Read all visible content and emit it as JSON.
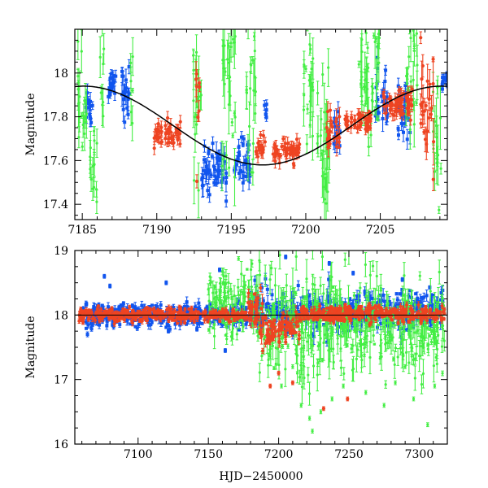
{
  "chart_data": [
    {
      "id": "top",
      "type": "scatter",
      "title": "",
      "xlabel": "",
      "ylabel": "Magnitude",
      "xlim": [
        7184.5,
        7209.5
      ],
      "ylim": [
        18.2,
        17.33
      ],
      "y_inverted": true,
      "xticks": [
        7185,
        7190,
        7195,
        7200,
        7205
      ],
      "xtick_labels": [
        "7185",
        "7190",
        "7195",
        "7200",
        "7205"
      ],
      "yticks": [
        17.4,
        17.6,
        17.8,
        18.0
      ],
      "ytick_labels": [
        "17.4",
        "17.6",
        "17.8",
        "18"
      ],
      "colors": {
        "red": "#ee4422",
        "blue": "#1155ee",
        "green": "#44ee44",
        "model": "#000000"
      },
      "model_curve": {
        "name": "sinusoid fit",
        "mean": 17.76,
        "amplitude": 0.18,
        "peak_x": 7197.1,
        "period_days": 24
      },
      "series": [
        {
          "name": "red",
          "segments": [
            {
              "x": [
                7189.8,
                7191.6
              ],
              "center": 17.72,
              "spread": 0.05
            },
            {
              "x": [
                7192.6,
                7192.9
              ],
              "center": 17.82,
              "spread": 0.25
            },
            {
              "x": [
                7196.6,
                7197.3
              ],
              "center": 17.65,
              "spread": 0.04
            },
            {
              "x": [
                7197.8,
                7199.6
              ],
              "center": 17.64,
              "spread": 0.05
            },
            {
              "x": [
                7201.4,
                7202.3
              ],
              "center": 17.73,
              "spread": 0.08
            },
            {
              "x": [
                7202.6,
                7204.4
              ],
              "center": 17.78,
              "spread": 0.04
            },
            {
              "x": [
                7205.2,
                7207.2
              ],
              "center": 17.86,
              "spread": 0.06
            },
            {
              "x": [
                7207.7,
                7208.6
              ],
              "center": 17.88,
              "spread": 0.22
            }
          ]
        },
        {
          "name": "blue",
          "segments": [
            {
              "x": [
                7185.2,
                7185.7
              ],
              "center": 17.85,
              "spread": 0.08
            },
            {
              "x": [
                7186.7,
                7187.3
              ],
              "center": 17.95,
              "spread": 0.06
            },
            {
              "x": [
                7187.6,
                7188.3
              ],
              "center": 17.92,
              "spread": 0.1
            },
            {
              "x": [
                7193.0,
                7194.7
              ],
              "center": 17.55,
              "spread": 0.1
            },
            {
              "x": [
                7195.2,
                7196.3
              ],
              "center": 17.6,
              "spread": 0.07
            },
            {
              "x": [
                7197.2,
                7197.4
              ],
              "center": 17.84,
              "spread": 0.04
            },
            {
              "x": [
                7201.8,
                7202.3
              ],
              "center": 17.72,
              "spread": 0.08
            },
            {
              "x": [
                7204.6,
                7205.5
              ],
              "center": 17.88,
              "spread": 0.12
            },
            {
              "x": [
                7206.2,
                7207.1
              ],
              "center": 17.82,
              "spread": 0.1
            },
            {
              "x": [
                7209.1,
                7209.5
              ],
              "center": 17.97,
              "spread": 0.03
            }
          ]
        },
        {
          "name": "green",
          "segments": [
            {
              "x": [
                7184.7,
                7185.3
              ],
              "center": 17.85,
              "spread": 0.25
            },
            {
              "x": [
                7185.5,
                7186.0
              ],
              "center": 17.6,
              "spread": 0.15
            },
            {
              "x": [
                7186.2,
                7186.5
              ],
              "center": 17.95,
              "spread": 0.22
            },
            {
              "x": [
                7188.2,
                7188.4
              ],
              "center": 17.9,
              "spread": 0.2
            },
            {
              "x": [
                7192.4,
                7193.0
              ],
              "center": 17.85,
              "spread": 0.3
            },
            {
              "x": [
                7194.3,
                7195.3
              ],
              "center": 17.9,
              "spread": 0.3
            },
            {
              "x": [
                7196.0,
                7196.7
              ],
              "center": 17.85,
              "spread": 0.3
            },
            {
              "x": [
                7199.8,
                7200.5
              ],
              "center": 17.95,
              "spread": 0.25
            },
            {
              "x": [
                7200.7,
                7201.6
              ],
              "center": 17.7,
              "spread": 0.3
            },
            {
              "x": [
                7203.5,
                7205.0
              ],
              "center": 17.95,
              "spread": 0.25
            },
            {
              "x": [
                7206.7,
                7207.5
              ],
              "center": 17.95,
              "spread": 0.25
            },
            {
              "x": [
                7208.5,
                7209.1
              ],
              "center": 17.7,
              "spread": 0.3
            }
          ]
        }
      ]
    },
    {
      "id": "bottom",
      "type": "scatter",
      "title": "",
      "xlabel": "HJD−2450000",
      "ylabel": "Magnitude",
      "xlim": [
        7055,
        7320
      ],
      "ylim": [
        19.0,
        16.0
      ],
      "y_inverted": true,
      "xticks": [
        7100,
        7150,
        7200,
        7250,
        7300
      ],
      "xtick_labels": [
        "7100",
        "7150",
        "7200",
        "7250",
        "7300"
      ],
      "yticks": [
        16,
        17,
        18,
        19
      ],
      "ytick_labels": [
        "16",
        "17",
        "18",
        "19"
      ],
      "reference_line_y": 18.0,
      "colors": {
        "red": "#ee4422",
        "blue": "#1155ee",
        "green": "#44ee44"
      },
      "series": [
        {
          "name": "red",
          "segments": [
            {
              "x": [
                7058,
                7178
              ],
              "center": 18.0,
              "spread": 0.08
            },
            {
              "x": [
                7178,
                7190
              ],
              "center": 18.0,
              "spread": 0.3
            },
            {
              "x": [
                7190,
                7200
              ],
              "center": 17.7,
              "spread": 0.2
            },
            {
              "x": [
                7200,
                7215
              ],
              "center": 17.85,
              "spread": 0.2
            },
            {
              "x": [
                7215,
                7318
              ],
              "center": 18.02,
              "spread": 0.1
            }
          ]
        },
        {
          "name": "blue",
          "segments": [
            {
              "x": [
                7060,
                7180
              ],
              "center": 18.0,
              "spread": 0.15
            },
            {
              "x": [
                7180,
                7318
              ],
              "center": 18.05,
              "spread": 0.25
            }
          ]
        },
        {
          "name": "green",
          "segments": [
            {
              "x": [
                7150,
                7185
              ],
              "center": 18.2,
              "spread": 0.45
            },
            {
              "x": [
                7185,
                7260
              ],
              "center": 17.85,
              "spread": 0.7
            },
            {
              "x": [
                7260,
                7318
              ],
              "center": 17.8,
              "spread": 0.55
            }
          ]
        }
      ],
      "outliers_green": [
        {
          "x": 7202,
          "y": 16.9
        },
        {
          "x": 7216,
          "y": 16.6
        },
        {
          "x": 7222,
          "y": 16.4
        },
        {
          "x": 7230,
          "y": 16.5
        },
        {
          "x": 7238,
          "y": 16.7
        },
        {
          "x": 7262,
          "y": 16.8
        },
        {
          "x": 7275,
          "y": 16.6
        },
        {
          "x": 7283,
          "y": 16.95
        },
        {
          "x": 7296,
          "y": 16.7
        },
        {
          "x": 7306,
          "y": 16.3
        },
        {
          "x": 7224,
          "y": 16.2
        },
        {
          "x": 7311,
          "y": 16.9
        },
        {
          "x": 7210,
          "y": 17.2
        },
        {
          "x": 7246,
          "y": 16.9
        },
        {
          "x": 7290,
          "y": 17.2
        }
      ],
      "outliers_red": [
        {
          "x": 7232,
          "y": 16.55
        },
        {
          "x": 7249,
          "y": 16.7
        },
        {
          "x": 7194,
          "y": 16.9
        },
        {
          "x": 7210,
          "y": 16.95
        },
        {
          "x": 7200,
          "y": 17.1
        }
      ],
      "outliers_blue": [
        {
          "x": 7076,
          "y": 18.6
        },
        {
          "x": 7080,
          "y": 18.45
        },
        {
          "x": 7120,
          "y": 18.5
        },
        {
          "x": 7158,
          "y": 18.7
        },
        {
          "x": 7162,
          "y": 17.45
        },
        {
          "x": 7205,
          "y": 18.9
        },
        {
          "x": 7236,
          "y": 18.8
        },
        {
          "x": 7253,
          "y": 18.65
        },
        {
          "x": 7288,
          "y": 18.55
        }
      ]
    }
  ]
}
